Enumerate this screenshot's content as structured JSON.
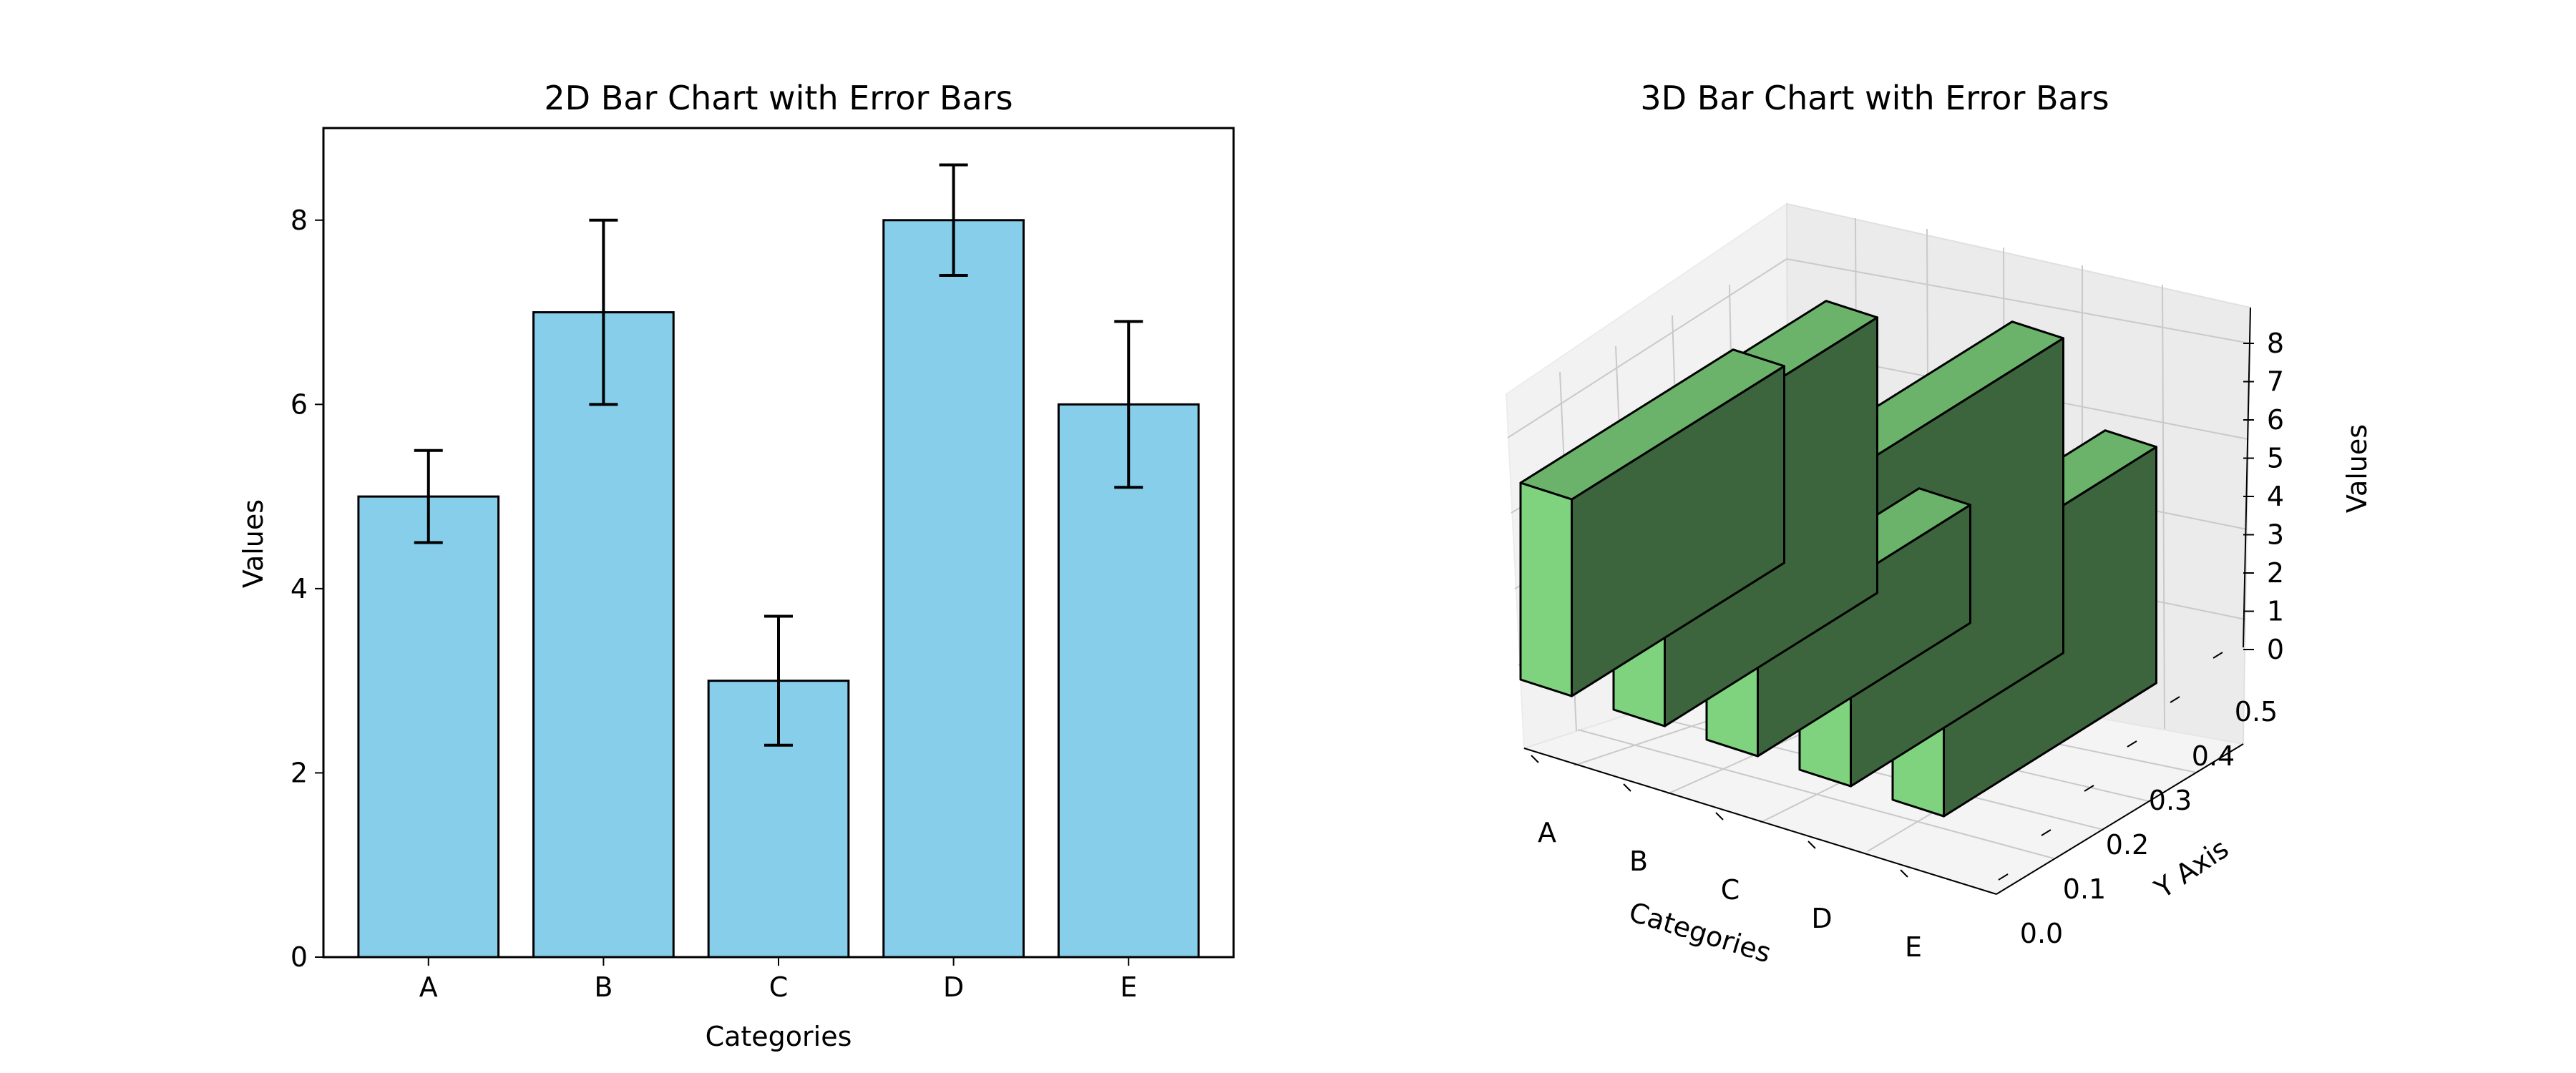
{
  "chart_data": [
    {
      "type": "bar",
      "title": "2D Bar Chart with Error Bars",
      "xlabel": "Categories",
      "ylabel": "Values",
      "categories": [
        "A",
        "B",
        "C",
        "D",
        "E"
      ],
      "values": [
        5,
        7,
        3,
        8,
        6
      ],
      "errors": [
        0.5,
        1.0,
        0.7,
        0.6,
        0.9
      ],
      "ylim": [
        0,
        9
      ],
      "yticks": [
        0,
        2,
        4,
        6,
        8
      ],
      "grid": false,
      "color": "#87CEEB",
      "edge_color": "#000000"
    },
    {
      "type": "bar",
      "projection": "3d",
      "title": "3D Bar Chart with Error Bars",
      "xlabel": "Categories",
      "ylabel": "Y Axis",
      "zlabel": "Values",
      "categories": [
        "A",
        "B",
        "C",
        "D",
        "E"
      ],
      "values": [
        5,
        7,
        3,
        8,
        6
      ],
      "y_ticks": [
        "0.0",
        "0.1",
        "0.2",
        "0.3",
        "0.4",
        "0.5"
      ],
      "z_ticks": [
        "0",
        "1",
        "2",
        "3",
        "4",
        "5",
        "6",
        "7",
        "8"
      ],
      "grid": true,
      "color": "#7FD37F",
      "edge_color": "#000000"
    }
  ]
}
